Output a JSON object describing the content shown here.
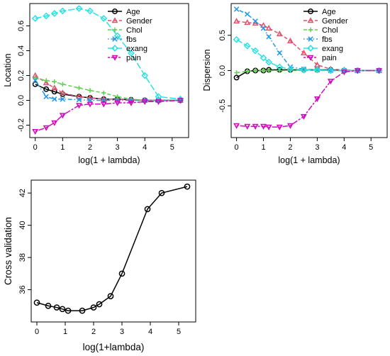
{
  "chart_data": [
    {
      "type": "line",
      "xlabel": "log(1 + lambda)",
      "ylabel": "Location",
      "xlim": [
        -0.2,
        5.6
      ],
      "ylim": [
        -0.3,
        0.78
      ],
      "xticks": [
        "0",
        "1",
        "2",
        "3",
        "4",
        "5"
      ],
      "yticks": [
        "-0.2",
        "0.0",
        "0.2",
        "0.4",
        "0.6"
      ],
      "legend_position": "top-right",
      "x": [
        0,
        0.4,
        0.7,
        1.0,
        1.6,
        2.0,
        2.5,
        3.0,
        3.5,
        4.0,
        4.5,
        5.3
      ],
      "series": [
        {
          "name": "Age",
          "color": "#000000",
          "marker": "circle",
          "dash": "solid",
          "values": [
            0.13,
            0.09,
            0.07,
            0.05,
            0.03,
            0.02,
            0.01,
            0.01,
            0.005,
            0.0,
            0.0,
            0.0
          ]
        },
        {
          "name": "Gender",
          "color": "#DF536B",
          "marker": "triangle",
          "dash": "dashed",
          "values": [
            0.2,
            0.14,
            0.1,
            0.06,
            0.03,
            0.02,
            0.01,
            0.01,
            0.005,
            0.0,
            0.0,
            0.0
          ]
        },
        {
          "name": "Chol",
          "color": "#61D04F",
          "marker": "plus",
          "dash": "dashed",
          "values": [
            0.18,
            0.16,
            0.15,
            0.13,
            0.1,
            0.08,
            0.06,
            0.03,
            0.01,
            0.0,
            0.0,
            0.0
          ]
        },
        {
          "name": "fbs",
          "color": "#2297E6",
          "marker": "cross",
          "dash": "dotdash",
          "values": [
            0.16,
            0.03,
            0.01,
            0.01,
            0.005,
            0.0,
            0.0,
            0.0,
            0.0,
            0.0,
            0.0,
            0.0
          ]
        },
        {
          "name": "exang",
          "color": "#28E2E5",
          "marker": "diamond",
          "dash": "longdash",
          "values": [
            0.66,
            0.68,
            0.7,
            0.72,
            0.74,
            0.72,
            0.66,
            0.52,
            0.38,
            0.2,
            0.03,
            0.01
          ]
        },
        {
          "name": "pain",
          "color": "#CD0BBC",
          "marker": "triangle-down",
          "dash": "twodash",
          "values": [
            -0.25,
            -0.22,
            -0.18,
            -0.12,
            -0.04,
            -0.03,
            -0.03,
            -0.02,
            -0.02,
            -0.01,
            -0.01,
            0.0
          ]
        }
      ]
    },
    {
      "type": "line",
      "xlabel": "log(1 + lambda)",
      "ylabel": "Dispersion",
      "xlim": [
        -0.2,
        5.6
      ],
      "ylim": [
        -0.95,
        0.95
      ],
      "xticks": [
        "0",
        "1",
        "2",
        "3",
        "4",
        "5"
      ],
      "yticks": [
        "-0.5",
        "0.0",
        "0.5"
      ],
      "legend_position": "top-right",
      "x": [
        0,
        0.4,
        0.7,
        1.0,
        1.2,
        1.6,
        2.0,
        2.5,
        3.0,
        3.5,
        4.0,
        4.5,
        5.3
      ],
      "series": [
        {
          "name": "Age",
          "color": "#000000",
          "marker": "circle",
          "dash": "solid",
          "values": [
            -0.1,
            -0.01,
            0.0,
            0.0,
            0.01,
            0.01,
            0.01,
            0.01,
            0.01,
            0.01,
            0.0,
            0.0,
            0.0
          ]
        },
        {
          "name": "Gender",
          "color": "#DF536B",
          "marker": "triangle",
          "dash": "dashed",
          "values": [
            0.7,
            0.68,
            0.67,
            0.64,
            0.6,
            0.52,
            0.42,
            0.25,
            0.08,
            0.02,
            0.01,
            0.0,
            0.0
          ]
        },
        {
          "name": "Chol",
          "color": "#61D04F",
          "marker": "plus",
          "dash": "dashed",
          "values": [
            -0.03,
            -0.01,
            0.0,
            0.0,
            0.0,
            0.0,
            0.0,
            0.0,
            0.0,
            0.0,
            0.0,
            0.0,
            0.0
          ]
        },
        {
          "name": "fbs",
          "color": "#2297E6",
          "marker": "cross",
          "dash": "dotdash",
          "values": [
            0.87,
            0.8,
            0.7,
            0.6,
            0.48,
            0.25,
            0.05,
            0.02,
            0.01,
            0.0,
            0.0,
            0.0,
            0.0
          ]
        },
        {
          "name": "exang",
          "color": "#28E2E5",
          "marker": "diamond",
          "dash": "longdash",
          "values": [
            0.44,
            0.35,
            0.28,
            0.18,
            0.12,
            0.05,
            0.02,
            0.01,
            0.01,
            0.0,
            0.0,
            0.0,
            0.0
          ]
        },
        {
          "name": "pain",
          "color": "#CD0BBC",
          "marker": "triangle-down",
          "dash": "twodash",
          "values": [
            -0.78,
            -0.79,
            -0.79,
            -0.79,
            -0.8,
            -0.8,
            -0.78,
            -0.65,
            -0.4,
            -0.15,
            -0.02,
            0.0,
            0.0
          ]
        }
      ]
    },
    {
      "type": "line",
      "xlabel": "log(1+lambda)",
      "ylabel": "Cross validation",
      "xlim": [
        -0.2,
        5.6
      ],
      "ylim": [
        34.0,
        42.8
      ],
      "xticks": [
        "0",
        "1",
        "2",
        "3",
        "4",
        "5"
      ],
      "yticks": [
        "36",
        "38",
        "40",
        "42"
      ],
      "grid": false,
      "x": [
        0,
        0.4,
        0.7,
        0.9,
        1.1,
        1.6,
        2.0,
        2.2,
        2.6,
        3.0,
        3.9,
        4.4,
        5.3
      ],
      "series": [
        {
          "color": "#000000",
          "marker": "circle",
          "dash": "solid",
          "values": [
            35.2,
            35.0,
            34.9,
            34.8,
            34.7,
            34.7,
            34.9,
            35.1,
            35.6,
            37.0,
            41.0,
            42.0,
            42.4
          ]
        }
      ]
    }
  ]
}
